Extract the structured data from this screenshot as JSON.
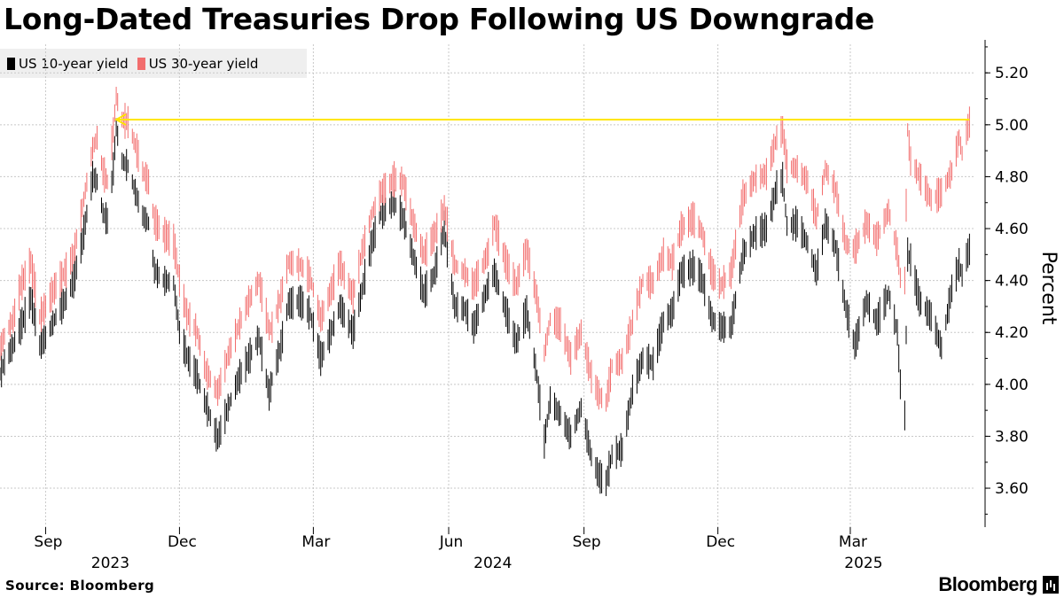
{
  "chart_data": {
    "type": "line",
    "title": "Long-Dated Treasuries Drop Following US Downgrade",
    "ylabel": "Percent",
    "ylim": [
      3.45,
      5.31
    ],
    "yticks": [
      "5.20",
      "5.00",
      "4.80",
      "4.60",
      "4.40",
      "4.20",
      "4.00",
      "3.80",
      "3.60"
    ],
    "x_ticks": [
      {
        "label": "Sep",
        "date": "2023-09-01"
      },
      {
        "label": "Dec",
        "date": "2023-12-01"
      },
      {
        "label": "Mar",
        "date": "2024-03-01"
      },
      {
        "label": "Jun",
        "date": "2024-06-01"
      },
      {
        "label": "Sep",
        "date": "2024-09-01"
      },
      {
        "label": "Dec",
        "date": "2024-12-01"
      },
      {
        "label": "Mar",
        "date": "2025-03-01"
      }
    ],
    "year_labels": [
      {
        "label": "2023",
        "date": "2023-10-15"
      },
      {
        "label": "2024",
        "date": "2024-07-01"
      },
      {
        "label": "2025",
        "date": "2025-03-10"
      }
    ],
    "x_range": [
      "2023-08-01",
      "2025-05-25"
    ],
    "grid": true,
    "legend_position": "top-left",
    "reference_line": {
      "value": 5.02,
      "start": "2023-10-19",
      "end": "2025-05-21",
      "color": "#ffe600"
    },
    "series": [
      {
        "name": "US 10-year yield",
        "color": "#000000",
        "points": [
          [
            "2023-08-01",
            4.04
          ],
          [
            "2023-08-05",
            4.1
          ],
          [
            "2023-08-10",
            4.15
          ],
          [
            "2023-08-15",
            4.22
          ],
          [
            "2023-08-22",
            4.33
          ],
          [
            "2023-08-28",
            4.15
          ],
          [
            "2023-09-01",
            4.18
          ],
          [
            "2023-09-08",
            4.26
          ],
          [
            "2023-09-15",
            4.33
          ],
          [
            "2023-09-20",
            4.4
          ],
          [
            "2023-09-26",
            4.55
          ],
          [
            "2023-10-03",
            4.8
          ],
          [
            "2023-10-06",
            4.78
          ],
          [
            "2023-10-10",
            4.66
          ],
          [
            "2023-10-13",
            4.63
          ],
          [
            "2023-10-17",
            4.83
          ],
          [
            "2023-10-19",
            4.99
          ],
          [
            "2023-10-23",
            4.86
          ],
          [
            "2023-10-27",
            4.84
          ],
          [
            "2023-11-01",
            4.74
          ],
          [
            "2023-11-06",
            4.65
          ],
          [
            "2023-11-10",
            4.62
          ],
          [
            "2023-11-14",
            4.44
          ],
          [
            "2023-11-20",
            4.4
          ],
          [
            "2023-11-27",
            4.39
          ],
          [
            "2023-12-01",
            4.2
          ],
          [
            "2023-12-06",
            4.11
          ],
          [
            "2023-12-13",
            4.03
          ],
          [
            "2023-12-19",
            3.92
          ],
          [
            "2023-12-27",
            3.79
          ],
          [
            "2024-01-03",
            3.91
          ],
          [
            "2024-01-10",
            4.02
          ],
          [
            "2024-01-17",
            4.1
          ],
          [
            "2024-01-24",
            4.18
          ],
          [
            "2024-01-31",
            3.96
          ],
          [
            "2024-02-02",
            4.02
          ],
          [
            "2024-02-08",
            4.15
          ],
          [
            "2024-02-13",
            4.31
          ],
          [
            "2024-02-21",
            4.32
          ],
          [
            "2024-02-28",
            4.27
          ],
          [
            "2024-03-06",
            4.1
          ],
          [
            "2024-03-13",
            4.2
          ],
          [
            "2024-03-19",
            4.3
          ],
          [
            "2024-03-28",
            4.2
          ],
          [
            "2024-04-03",
            4.36
          ],
          [
            "2024-04-10",
            4.55
          ],
          [
            "2024-04-16",
            4.66
          ],
          [
            "2024-04-25",
            4.7
          ],
          [
            "2024-05-01",
            4.64
          ],
          [
            "2024-05-08",
            4.49
          ],
          [
            "2024-05-15",
            4.35
          ],
          [
            "2024-05-22",
            4.42
          ],
          [
            "2024-05-29",
            4.6
          ],
          [
            "2024-06-05",
            4.3
          ],
          [
            "2024-06-12",
            4.29
          ],
          [
            "2024-06-18",
            4.22
          ],
          [
            "2024-06-28",
            4.38
          ],
          [
            "2024-07-02",
            4.43
          ],
          [
            "2024-07-10",
            4.28
          ],
          [
            "2024-07-17",
            4.16
          ],
          [
            "2024-07-24",
            4.28
          ],
          [
            "2024-07-31",
            4.03
          ],
          [
            "2024-08-05",
            3.78
          ],
          [
            "2024-08-09",
            3.94
          ],
          [
            "2024-08-16",
            3.88
          ],
          [
            "2024-08-23",
            3.8
          ],
          [
            "2024-08-30",
            3.91
          ],
          [
            "2024-09-06",
            3.72
          ],
          [
            "2024-09-11",
            3.65
          ],
          [
            "2024-09-16",
            3.62
          ],
          [
            "2024-09-20",
            3.73
          ],
          [
            "2024-09-27",
            3.75
          ],
          [
            "2024-10-04",
            3.98
          ],
          [
            "2024-10-11",
            4.1
          ],
          [
            "2024-10-18",
            4.08
          ],
          [
            "2024-10-25",
            4.24
          ],
          [
            "2024-10-31",
            4.28
          ],
          [
            "2024-11-06",
            4.43
          ],
          [
            "2024-11-14",
            4.45
          ],
          [
            "2024-11-20",
            4.41
          ],
          [
            "2024-11-27",
            4.25
          ],
          [
            "2024-12-03",
            4.22
          ],
          [
            "2024-12-10",
            4.22
          ],
          [
            "2024-12-18",
            4.5
          ],
          [
            "2024-12-26",
            4.58
          ],
          [
            "2025-01-03",
            4.6
          ],
          [
            "2025-01-10",
            4.76
          ],
          [
            "2025-01-14",
            4.79
          ],
          [
            "2025-01-17",
            4.61
          ],
          [
            "2025-01-24",
            4.62
          ],
          [
            "2025-01-31",
            4.54
          ],
          [
            "2025-02-06",
            4.43
          ],
          [
            "2025-02-12",
            4.62
          ],
          [
            "2025-02-19",
            4.53
          ],
          [
            "2025-02-26",
            4.29
          ],
          [
            "2025-03-04",
            4.15
          ],
          [
            "2025-03-12",
            4.32
          ],
          [
            "2025-03-19",
            4.24
          ],
          [
            "2025-03-27",
            4.35
          ],
          [
            "2025-04-02",
            4.2
          ],
          [
            "2025-04-04",
            4.0
          ],
          [
            "2025-04-07",
            3.88
          ],
          [
            "2025-04-09",
            4.5
          ],
          [
            "2025-04-11",
            4.48
          ],
          [
            "2025-04-17",
            4.32
          ],
          [
            "2025-04-25",
            4.26
          ],
          [
            "2025-05-02",
            4.14
          ],
          [
            "2025-05-09",
            4.37
          ],
          [
            "2025-05-14",
            4.46
          ],
          [
            "2025-05-16",
            4.42
          ],
          [
            "2025-05-19",
            4.49
          ],
          [
            "2025-05-21",
            4.52
          ]
        ]
      },
      {
        "name": "US 30-year yield",
        "color": "#f26d6d",
        "points": [
          [
            "2023-08-01",
            4.14
          ],
          [
            "2023-08-05",
            4.2
          ],
          [
            "2023-08-10",
            4.25
          ],
          [
            "2023-08-15",
            4.38
          ],
          [
            "2023-08-22",
            4.47
          ],
          [
            "2023-08-28",
            4.26
          ],
          [
            "2023-09-01",
            4.3
          ],
          [
            "2023-09-08",
            4.38
          ],
          [
            "2023-09-15",
            4.44
          ],
          [
            "2023-09-20",
            4.5
          ],
          [
            "2023-09-26",
            4.68
          ],
          [
            "2023-10-03",
            4.91
          ],
          [
            "2023-10-06",
            4.95
          ],
          [
            "2023-10-10",
            4.82
          ],
          [
            "2023-10-13",
            4.78
          ],
          [
            "2023-10-17",
            4.98
          ],
          [
            "2023-10-19",
            5.11
          ],
          [
            "2023-10-23",
            5.02
          ],
          [
            "2023-10-27",
            5.01
          ],
          [
            "2023-11-01",
            4.92
          ],
          [
            "2023-11-06",
            4.82
          ],
          [
            "2023-11-10",
            4.78
          ],
          [
            "2023-11-14",
            4.63
          ],
          [
            "2023-11-20",
            4.58
          ],
          [
            "2023-11-27",
            4.55
          ],
          [
            "2023-12-01",
            4.4
          ],
          [
            "2023-12-06",
            4.27
          ],
          [
            "2023-12-13",
            4.2
          ],
          [
            "2023-12-19",
            4.05
          ],
          [
            "2023-12-27",
            3.97
          ],
          [
            "2024-01-03",
            4.11
          ],
          [
            "2024-01-10",
            4.22
          ],
          [
            "2024-01-17",
            4.32
          ],
          [
            "2024-01-24",
            4.4
          ],
          [
            "2024-01-31",
            4.21
          ],
          [
            "2024-02-02",
            4.22
          ],
          [
            "2024-02-08",
            4.34
          ],
          [
            "2024-02-13",
            4.47
          ],
          [
            "2024-02-21",
            4.46
          ],
          [
            "2024-02-28",
            4.41
          ],
          [
            "2024-03-06",
            4.25
          ],
          [
            "2024-03-13",
            4.36
          ],
          [
            "2024-03-19",
            4.46
          ],
          [
            "2024-03-28",
            4.34
          ],
          [
            "2024-04-03",
            4.51
          ],
          [
            "2024-04-10",
            4.66
          ],
          [
            "2024-04-16",
            4.74
          ],
          [
            "2024-04-25",
            4.79
          ],
          [
            "2024-05-01",
            4.78
          ],
          [
            "2024-05-08",
            4.62
          ],
          [
            "2024-05-15",
            4.5
          ],
          [
            "2024-05-22",
            4.57
          ],
          [
            "2024-05-29",
            4.68
          ],
          [
            "2024-06-05",
            4.46
          ],
          [
            "2024-06-12",
            4.43
          ],
          [
            "2024-06-18",
            4.38
          ],
          [
            "2024-06-28",
            4.51
          ],
          [
            "2024-07-02",
            4.62
          ],
          [
            "2024-07-10",
            4.47
          ],
          [
            "2024-07-17",
            4.38
          ],
          [
            "2024-07-24",
            4.52
          ],
          [
            "2024-07-31",
            4.33
          ],
          [
            "2024-08-05",
            4.12
          ],
          [
            "2024-08-09",
            4.25
          ],
          [
            "2024-08-16",
            4.23
          ],
          [
            "2024-08-23",
            4.1
          ],
          [
            "2024-08-30",
            4.2
          ],
          [
            "2024-09-06",
            4.03
          ],
          [
            "2024-09-11",
            3.96
          ],
          [
            "2024-09-16",
            3.93
          ],
          [
            "2024-09-20",
            4.07
          ],
          [
            "2024-09-27",
            4.09
          ],
          [
            "2024-10-04",
            4.24
          ],
          [
            "2024-10-11",
            4.4
          ],
          [
            "2024-10-18",
            4.39
          ],
          [
            "2024-10-25",
            4.5
          ],
          [
            "2024-10-31",
            4.47
          ],
          [
            "2024-11-06",
            4.6
          ],
          [
            "2024-11-14",
            4.64
          ],
          [
            "2024-11-20",
            4.59
          ],
          [
            "2024-11-27",
            4.43
          ],
          [
            "2024-12-03",
            4.38
          ],
          [
            "2024-12-10",
            4.43
          ],
          [
            "2024-12-18",
            4.72
          ],
          [
            "2024-12-26",
            4.79
          ],
          [
            "2025-01-03",
            4.81
          ],
          [
            "2025-01-10",
            4.95
          ],
          [
            "2025-01-14",
            4.98
          ],
          [
            "2025-01-17",
            4.84
          ],
          [
            "2025-01-24",
            4.83
          ],
          [
            "2025-01-31",
            4.78
          ],
          [
            "2025-02-06",
            4.64
          ],
          [
            "2025-02-12",
            4.83
          ],
          [
            "2025-02-19",
            4.75
          ],
          [
            "2025-02-26",
            4.54
          ],
          [
            "2025-03-04",
            4.52
          ],
          [
            "2025-03-12",
            4.62
          ],
          [
            "2025-03-19",
            4.56
          ],
          [
            "2025-03-27",
            4.67
          ],
          [
            "2025-04-02",
            4.51
          ],
          [
            "2025-04-04",
            4.41
          ],
          [
            "2025-04-07",
            4.4
          ],
          [
            "2025-04-09",
            4.98
          ],
          [
            "2025-04-11",
            4.86
          ],
          [
            "2025-04-17",
            4.8
          ],
          [
            "2025-04-25",
            4.71
          ],
          [
            "2025-05-02",
            4.74
          ],
          [
            "2025-05-09",
            4.82
          ],
          [
            "2025-05-14",
            4.95
          ],
          [
            "2025-05-16",
            4.89
          ],
          [
            "2025-05-19",
            4.97
          ],
          [
            "2025-05-21",
            5.01
          ]
        ]
      }
    ]
  },
  "source": "Source: Bloomberg",
  "brand": "Bloomberg"
}
